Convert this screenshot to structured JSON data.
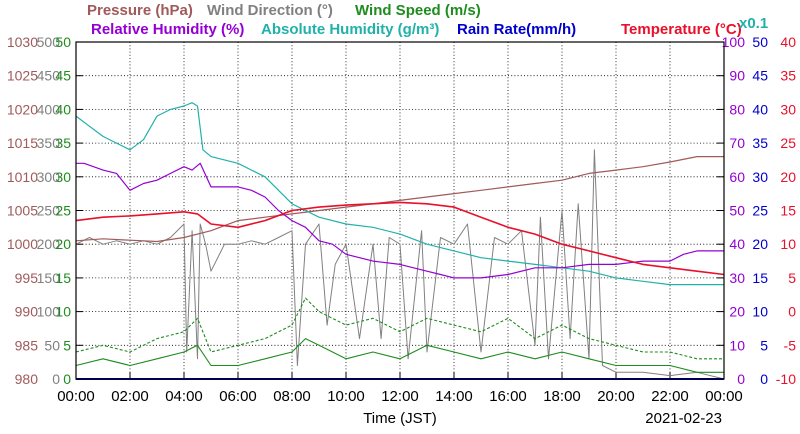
{
  "chart_data": {
    "type": "line",
    "legend": {
      "row1": [
        {
          "key": "pressure",
          "label": "Pressure (hPa)",
          "color": "#a05a5a"
        },
        {
          "key": "wind_dir",
          "label": "Wind Direction (°)",
          "color": "#808080"
        },
        {
          "key": "wind_speed",
          "label": "Wind Speed (m/s)",
          "color": "#1e8c1e"
        }
      ],
      "row2": [
        {
          "key": "rh",
          "label": "Relative Humidity (%)",
          "color": "#9400d3"
        },
        {
          "key": "ah",
          "label": "Absolute Humidity (g/m³)",
          "color": "#20b2aa"
        },
        {
          "key": "rain",
          "label": "Rain Rate(mm/h)",
          "color": "#0000cd"
        },
        {
          "key": "temp",
          "label": "Temperature (°C)",
          "color": "#e8102a"
        }
      ],
      "ah_scale_note": "x0.1"
    },
    "axes": {
      "pressure": {
        "ticks": [
          "980",
          "985",
          "990",
          "995",
          "1000",
          "1005",
          "1010",
          "1015",
          "1020",
          "1025",
          "1030"
        ],
        "color": "#a05a5a",
        "range": [
          980,
          1030
        ]
      },
      "wind_dir": {
        "ticks": [
          "0",
          "50",
          "100",
          "150",
          "200",
          "250",
          "300",
          "350",
          "400",
          "450",
          "500"
        ],
        "color": "#808080",
        "range": [
          0,
          500
        ]
      },
      "wind_speed": {
        "ticks": [
          "0",
          "5",
          "10",
          "15",
          "20",
          "25",
          "30",
          "35",
          "40",
          "45",
          "50"
        ],
        "color": "#1e8c1e",
        "range": [
          0,
          50
        ]
      },
      "rh": {
        "ticks": [
          "0",
          "10",
          "20",
          "30",
          "40",
          "50",
          "60",
          "70",
          "80",
          "90",
          "100"
        ],
        "color": "#9400d3",
        "range": [
          0,
          100
        ]
      },
      "rain": {
        "ticks": [
          "0",
          "5",
          "10",
          "15",
          "20",
          "25",
          "30",
          "35",
          "40",
          "45",
          "50"
        ],
        "color": "#0000cd",
        "range": [
          0,
          50
        ]
      },
      "temp": {
        "ticks": [
          "-10",
          "-5",
          "0",
          "5",
          "10",
          "15",
          "20",
          "25",
          "30",
          "35",
          "40"
        ],
        "color": "#e8102a",
        "range": [
          -10,
          40
        ]
      }
    },
    "x_ticks": [
      "00:00",
      "02:00",
      "04:00",
      "06:00",
      "08:00",
      "10:00",
      "12:00",
      "14:00",
      "16:00",
      "18:00",
      "20:00",
      "22:00",
      "00:00"
    ],
    "x_range_hours": [
      0,
      24
    ],
    "xlabel": "Time (JST)",
    "date": "2021-02-23",
    "grid": true,
    "series": {
      "pressure": {
        "x": [
          0,
          1,
          2,
          3,
          4,
          5,
          6,
          7,
          8,
          9,
          10,
          11,
          12,
          13,
          14,
          15,
          16,
          17,
          18,
          19,
          20,
          21,
          22,
          23,
          24
        ],
        "y": [
          1000.5,
          1000.8,
          1000.6,
          1000.4,
          1001.0,
          1002.0,
          1003.5,
          1004.0,
          1004.5,
          1005.0,
          1005.5,
          1006.0,
          1006.5,
          1007.0,
          1007.5,
          1008.0,
          1008.5,
          1009.0,
          1009.5,
          1010.5,
          1011.0,
          1011.5,
          1012.2,
          1013.0,
          1013.0
        ]
      },
      "wind_dir": {
        "x": [
          0,
          0.5,
          1,
          1.5,
          2,
          2.5,
          3,
          3.5,
          4,
          4.1,
          4.3,
          4.5,
          4.6,
          4.8,
          5,
          5.5,
          6,
          6.5,
          7,
          7.5,
          8,
          8.2,
          8.5,
          9,
          9.3,
          9.6,
          10,
          10.5,
          11,
          11.3,
          11.6,
          12,
          12.3,
          12.8,
          13,
          13.5,
          14,
          14.5,
          15,
          15.5,
          16,
          16.5,
          17,
          17.2,
          17.5,
          18,
          18.3,
          18.6,
          19,
          19.2,
          19.5,
          20,
          21,
          22,
          23,
          24
        ],
        "y": [
          200,
          210,
          200,
          205,
          200,
          205,
          200,
          210,
          230,
          40,
          220,
          30,
          230,
          200,
          160,
          200,
          200,
          205,
          200,
          210,
          220,
          20,
          200,
          230,
          80,
          170,
          200,
          60,
          200,
          60,
          210,
          200,
          30,
          220,
          40,
          210,
          200,
          230,
          40,
          210,
          200,
          220,
          50,
          240,
          30,
          250,
          60,
          260,
          30,
          340,
          20,
          10,
          10,
          5,
          10,
          0
        ]
      },
      "wind_speed": {
        "x": [
          0,
          1,
          2,
          3,
          4,
          4.5,
          5,
          6,
          7,
          8,
          8.5,
          9,
          10,
          11,
          12,
          13,
          14,
          15,
          16,
          17,
          18,
          19,
          20,
          21,
          22,
          23,
          24
        ],
        "y": [
          2,
          3,
          2,
          3,
          4,
          5,
          2,
          2,
          3,
          4,
          6,
          5,
          3,
          4,
          3,
          5,
          4,
          3,
          4,
          3,
          4,
          3,
          2,
          2,
          2,
          1,
          1
        ]
      },
      "gust": {
        "x": [
          0,
          1,
          2,
          3,
          4,
          4.5,
          5,
          6,
          7,
          8,
          8.5,
          9,
          10,
          11,
          12,
          13,
          14,
          15,
          16,
          17,
          18,
          19,
          20,
          21,
          22,
          23,
          24
        ],
        "y": [
          4,
          5,
          4,
          6,
          7,
          9,
          4,
          5,
          6,
          8,
          12,
          10,
          8,
          9,
          7,
          9,
          8,
          7,
          9,
          6,
          8,
          6,
          5,
          4,
          4,
          3,
          3
        ]
      },
      "rh": {
        "x": [
          0,
          0.3,
          1,
          1.5,
          2,
          2.5,
          3,
          3.5,
          4,
          4.3,
          4.6,
          5,
          6,
          6.5,
          7,
          7.5,
          8,
          8.5,
          9,
          9.5,
          10,
          11,
          12,
          13,
          13.5,
          14,
          15,
          16,
          17,
          18,
          19,
          20,
          21,
          22,
          22.5,
          23,
          24
        ],
        "y": [
          64,
          64,
          62,
          61,
          56,
          58,
          59,
          61,
          63,
          62,
          64,
          57,
          57,
          56,
          54,
          50,
          47,
          45,
          41,
          40,
          37,
          35,
          34,
          32,
          31,
          30,
          30,
          31,
          33,
          33,
          34,
          34,
          35,
          35,
          37,
          38,
          38
        ]
      },
      "ah": {
        "x": [
          0,
          0.5,
          1,
          1.5,
          2,
          2.5,
          3,
          3.5,
          4,
          4.3,
          4.5,
          4.7,
          5,
          5.5,
          6,
          6.5,
          7,
          7.5,
          8,
          8.5,
          9,
          10,
          11,
          12,
          13,
          14,
          15,
          16,
          17,
          18,
          19,
          20,
          21,
          22,
          23,
          24
        ],
        "y": [
          7.8,
          7.5,
          7.2,
          7.0,
          6.8,
          7.1,
          7.8,
          8.0,
          8.1,
          8.2,
          8.1,
          6.8,
          6.6,
          6.5,
          6.4,
          6.2,
          6.0,
          5.6,
          5.2,
          5.0,
          4.8,
          4.6,
          4.5,
          4.3,
          4.0,
          3.8,
          3.6,
          3.5,
          3.4,
          3.3,
          3.2,
          3.0,
          2.9,
          2.8,
          2.8,
          2.8
        ]
      },
      "rain": {
        "x": [
          0,
          24
        ],
        "y": [
          0,
          0
        ]
      },
      "temp": {
        "x": [
          0,
          1,
          2,
          3,
          4,
          4.5,
          5,
          6,
          7,
          8,
          9,
          10,
          11,
          12,
          13,
          14,
          15,
          16,
          17,
          18,
          19,
          20,
          21,
          22,
          23,
          24
        ],
        "y": [
          13.5,
          14.0,
          14.2,
          14.5,
          14.8,
          14.5,
          13.0,
          12.5,
          13.5,
          15.0,
          15.5,
          15.8,
          16.0,
          16.2,
          16.0,
          15.5,
          14.0,
          12.5,
          11.5,
          10.0,
          9.0,
          8.0,
          7.0,
          6.5,
          6.0,
          5.5
        ]
      }
    }
  }
}
